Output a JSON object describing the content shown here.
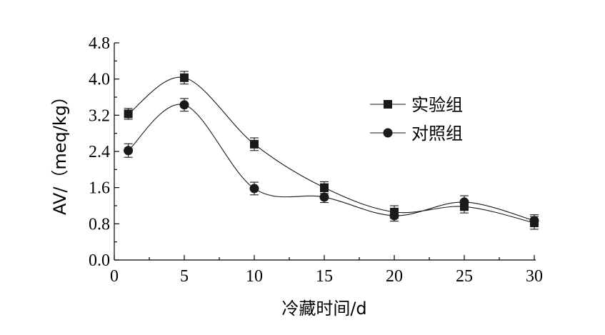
{
  "chart_data": {
    "type": "line",
    "xlabel": "冷藏时间/d",
    "ylabel": "AV/（meq/kg）",
    "xlim": [
      0,
      30
    ],
    "ylim": [
      0,
      4.8
    ],
    "xticks": [
      "0",
      "5",
      "10",
      "15",
      "20",
      "25",
      "30"
    ],
    "yticks": [
      "0.0",
      "0.8",
      "1.6",
      "2.4",
      "3.2",
      "4.0",
      "4.8"
    ],
    "grid": false,
    "legend_position": "right",
    "x": [
      1,
      5,
      10,
      15,
      20,
      25,
      30
    ],
    "series": [
      {
        "name": "实验组",
        "marker": "square",
        "values": [
          3.23,
          4.03,
          2.56,
          1.6,
          1.06,
          1.18,
          0.82
        ],
        "errors": [
          0.12,
          0.14,
          0.14,
          0.13,
          0.14,
          0.14,
          0.14
        ]
      },
      {
        "name": "对照组",
        "marker": "circle",
        "values": [
          2.42,
          3.43,
          1.58,
          1.39,
          0.98,
          1.28,
          0.87
        ],
        "errors": [
          0.15,
          0.14,
          0.14,
          0.12,
          0.12,
          0.14,
          0.13
        ]
      }
    ],
    "colors": {
      "line": "#1a1a1a"
    }
  }
}
